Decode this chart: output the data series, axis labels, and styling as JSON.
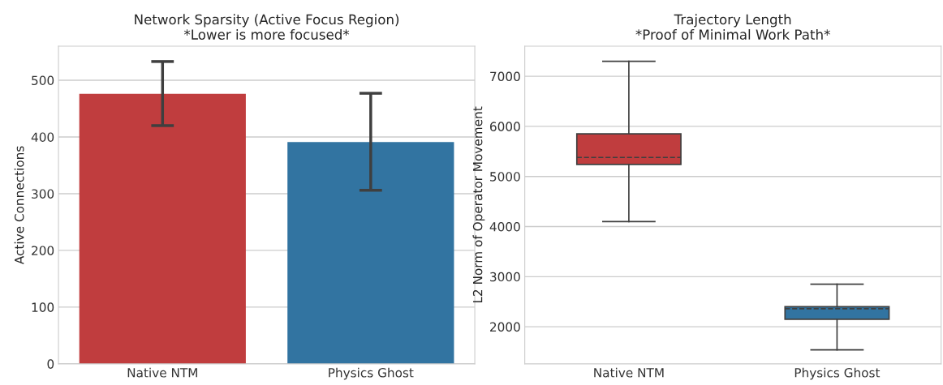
{
  "chart_data": [
    {
      "type": "bar",
      "title": "Network Sparsity (Active Focus Region)\n*Lower is more focused*",
      "ylabel": "Active Connections",
      "categories": [
        "Native NTM",
        "Physics Ghost"
      ],
      "values": [
        476,
        391
      ],
      "colors": [
        "#c03d3e",
        "#3274a1"
      ],
      "errors": [
        [
          420,
          533
        ],
        [
          306,
          477
        ]
      ],
      "ylim": [
        0,
        560
      ],
      "yticks": [
        0,
        100,
        200,
        300,
        400,
        500
      ],
      "grid": "y"
    },
    {
      "type": "box",
      "title": "Trajectory Length\n*Proof of Minimal Work Path*",
      "ylabel": "L2 Norm of Operator Movement",
      "categories": [
        "Native NTM",
        "Physics Ghost"
      ],
      "colors": [
        "#c03d3e",
        "#3274a1"
      ],
      "boxes": [
        {
          "low": 4100,
          "q1": 5240,
          "median": 5380,
          "q3": 5850,
          "high": 7300
        },
        {
          "low": 1540,
          "q1": 2150,
          "median": 2360,
          "q3": 2400,
          "high": 2850
        }
      ],
      "ylim": [
        1260,
        7600
      ],
      "yticks": [
        2000,
        3000,
        4000,
        5000,
        6000,
        7000
      ],
      "grid": "y"
    }
  ]
}
